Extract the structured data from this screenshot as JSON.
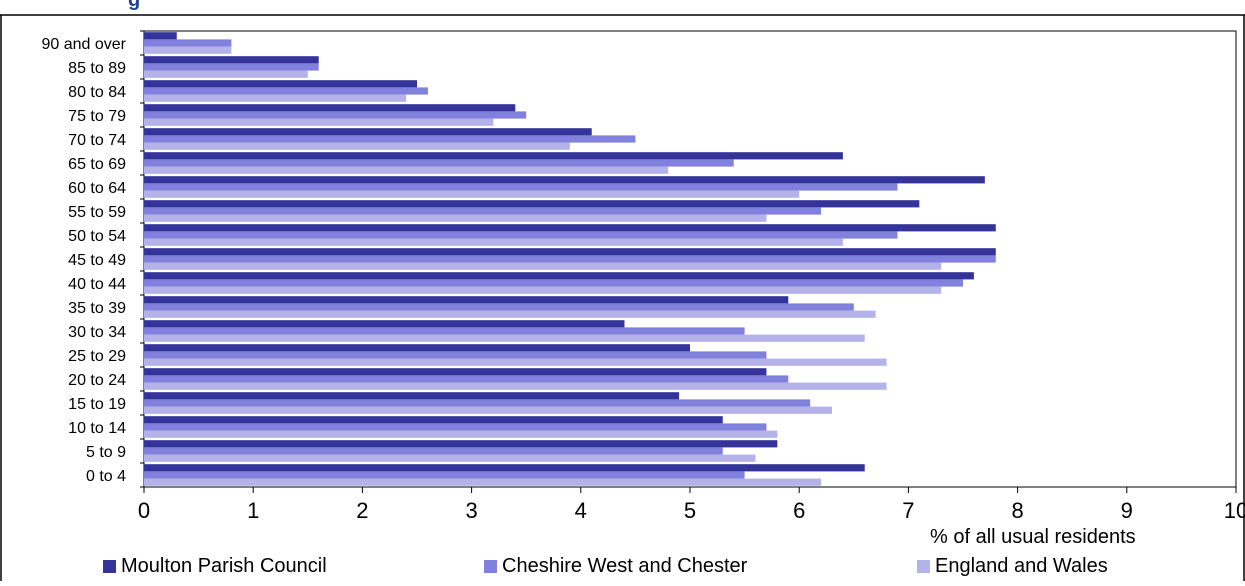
{
  "title_fragment": "g",
  "chart_data": {
    "type": "bar",
    "orientation": "horizontal",
    "categories": [
      "0 to 4",
      "5 to 9",
      "10 to 14",
      "15 to 19",
      "20 to 24",
      "25 to 29",
      "30 to 34",
      "35 to 39",
      "40 to 44",
      "45 to 49",
      "50 to 54",
      "55 to 59",
      "60 to 64",
      "65 to 69",
      "70 to 74",
      "75 to 79",
      "80 to 84",
      "85 to 89",
      "90 and over"
    ],
    "series": [
      {
        "name": "Moulton Parish Council",
        "color": "#333399",
        "values": [
          6.6,
          5.8,
          5.3,
          4.9,
          5.7,
          5.0,
          4.4,
          5.9,
          7.6,
          7.8,
          7.8,
          7.1,
          7.7,
          6.4,
          4.1,
          3.4,
          2.5,
          1.6,
          0.3
        ]
      },
      {
        "name": "Cheshire West and Chester",
        "color": "#8080dd",
        "values": [
          5.5,
          5.3,
          5.7,
          6.1,
          5.9,
          5.7,
          5.5,
          6.5,
          7.5,
          7.8,
          6.9,
          6.2,
          6.9,
          5.4,
          4.5,
          3.5,
          2.6,
          1.6,
          0.8
        ]
      },
      {
        "name": "England and Wales",
        "color": "#b3b3ea",
        "values": [
          6.2,
          5.6,
          5.8,
          6.3,
          6.8,
          6.8,
          6.6,
          6.7,
          7.3,
          7.3,
          6.4,
          5.7,
          6.0,
          4.8,
          3.9,
          3.2,
          2.4,
          1.5,
          0.8
        ]
      }
    ],
    "xlabel": "% of all usual residents",
    "ylabel": "",
    "xlim": [
      0,
      10
    ],
    "xticks": [
      "0",
      "1",
      "2",
      "3",
      "4",
      "5",
      "6",
      "7",
      "8",
      "9",
      "10"
    ],
    "grid": false,
    "legend_position": "bottom"
  }
}
